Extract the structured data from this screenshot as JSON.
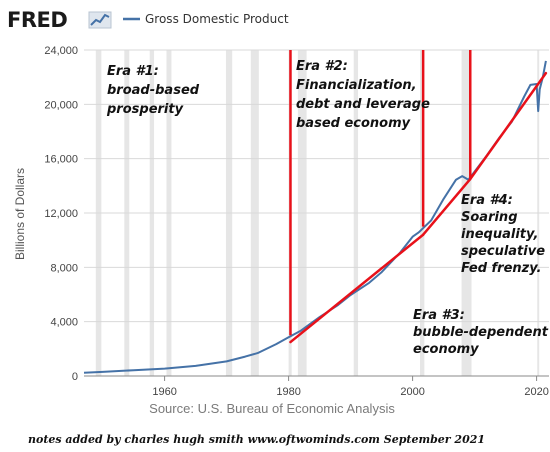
{
  "header": {
    "logo_text": "FRED",
    "legend_label": "Gross Domestic Product",
    "series_color": "#4572a7"
  },
  "annotation_color": "#e8111a",
  "recession_color": "#e6e6e6",
  "chart_data": {
    "type": "line",
    "title": "",
    "xlabel": "",
    "ylabel": "Billions of Dollars",
    "xlim": [
      1947,
      2022
    ],
    "ylim": [
      0,
      24000
    ],
    "x_ticks": [
      1960,
      1980,
      2000,
      2020
    ],
    "y_ticks": [
      "0",
      "4,000",
      "8,000",
      "12,000",
      "16,000",
      "20,000",
      "24,000"
    ],
    "y_tick_values": [
      0,
      4000,
      8000,
      12000,
      16000,
      20000,
      24000
    ],
    "grid": "horizontal",
    "legend": "top-left",
    "series": [
      {
        "name": "Gross Domestic Product",
        "x": [
          1947,
          1950,
          1955,
          1960,
          1965,
          1970,
          1973,
          1975,
          1978,
          1980,
          1982,
          1985,
          1988,
          1990,
          1993,
          1995,
          1998,
          2000,
          2001,
          2003,
          2005,
          2007,
          2008,
          2009,
          2010,
          2012,
          2014,
          2016,
          2018,
          2019,
          2020.0,
          2020.25,
          2020.5,
          2021,
          2021.5
        ],
        "values": [
          243,
          300,
          426,
          543,
          743,
          1073,
          1425,
          1684,
          2352,
          2857,
          3343,
          4339,
          5236,
          5963,
          6858,
          7640,
          9089,
          10252,
          10582,
          11456,
          13037,
          14452,
          14713,
          14449,
          15049,
          16254,
          17551,
          18715,
          20580,
          21433,
          21500,
          19500,
          21100,
          22000,
          23200
        ]
      }
    ],
    "recessions": [
      [
        1948.9,
        1949.8
      ],
      [
        1953.5,
        1954.3
      ],
      [
        1957.6,
        1958.3
      ],
      [
        1960.3,
        1961.1
      ],
      [
        1969.9,
        1970.9
      ],
      [
        1973.9,
        1975.2
      ],
      [
        1980.0,
        1980.5
      ],
      [
        1981.5,
        1982.9
      ],
      [
        1990.5,
        1991.2
      ],
      [
        2001.2,
        2001.9
      ],
      [
        2007.9,
        2009.5
      ],
      [
        2020.1,
        2020.4
      ]
    ],
    "annotations": [
      {
        "lines": [
          "Era #1:",
          "broad-based",
          "prosperity"
        ]
      },
      {
        "lines": [
          "Era #2:",
          "Financialization,",
          "debt and leverage",
          "based economy"
        ]
      },
      {
        "lines": [
          "Era #3:",
          "bubble-dependent",
          "economy"
        ]
      },
      {
        "lines": [
          "Era #4:",
          "Soaring",
          "inequality,",
          "speculative",
          "Fed frenzy."
        ]
      }
    ],
    "era_markers": [
      {
        "x": 1980.3,
        "y_top": 24000,
        "y_bottom": 3000
      },
      {
        "x": 2001.7,
        "y_top": 24000,
        "y_bottom": 11000
      },
      {
        "x": 2009.3,
        "y_top": 24000,
        "y_bottom": 14500
      }
    ],
    "trend_lines": [
      {
        "x": [
          1980.3,
          2001.7
        ],
        "y": [
          2500,
          10400
        ]
      },
      {
        "x": [
          2001.7,
          2009.3
        ],
        "y": [
          10400,
          14500
        ]
      },
      {
        "x": [
          2009.3,
          2021.5
        ],
        "y": [
          14500,
          22300
        ]
      }
    ]
  },
  "footer": {
    "source": "Source: U.S. Bureau of Economic Analysis",
    "notes": "notes added by charles hugh smith   www.oftwominds.com  September 2021"
  }
}
